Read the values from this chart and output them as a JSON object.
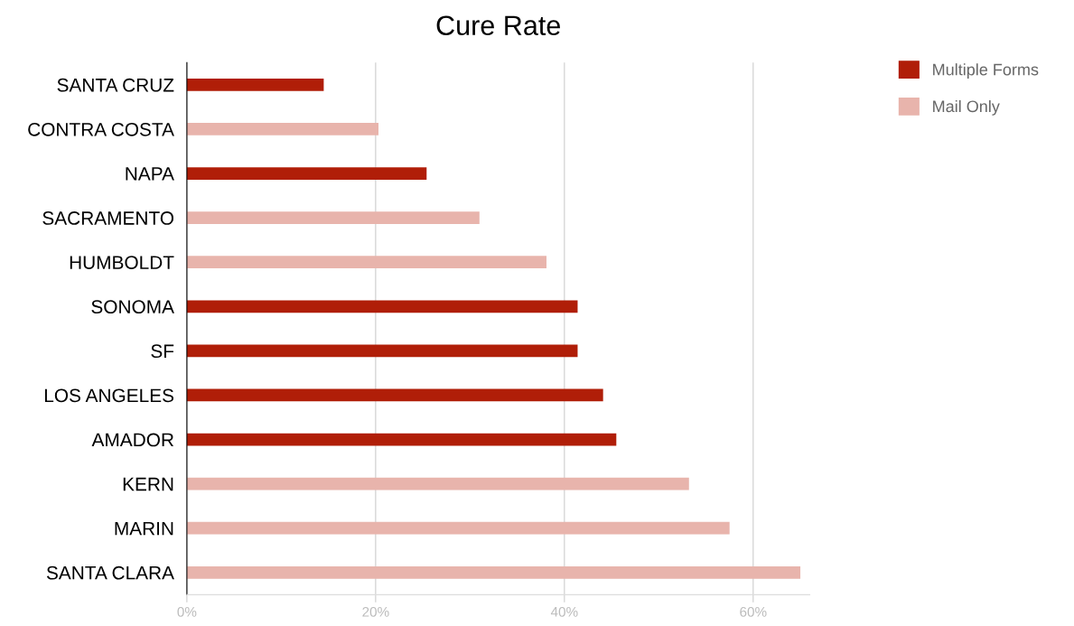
{
  "chart_data": {
    "type": "bar",
    "orientation": "horizontal",
    "title": "Cure Rate",
    "categories": [
      "SANTA CRUZ",
      "CONTRA COSTA",
      "NAPA",
      "SACRAMENTO",
      "HUMBOLDT",
      "SONOMA",
      "SF",
      "LOS ANGELES",
      "AMADOR",
      "KERN",
      "MARIN",
      "SANTA CLARA"
    ],
    "series": [
      {
        "name": "Multiple Forms",
        "color": "#b01e08",
        "values": [
          14.5,
          null,
          25.4,
          null,
          null,
          41.4,
          41.4,
          44.1,
          45.5,
          null,
          null,
          null
        ]
      },
      {
        "name": "Mail Only",
        "color": "#e8b4ac",
        "values": [
          null,
          20.3,
          null,
          31,
          38.1,
          null,
          null,
          null,
          null,
          53.2,
          57.5,
          65
        ]
      }
    ],
    "xlim": [
      0,
      66
    ],
    "xticks": [
      {
        "value": 0,
        "label": "0%"
      },
      {
        "value": 20,
        "label": "20%"
      },
      {
        "value": 40,
        "label": "40%"
      },
      {
        "value": 60,
        "label": "60%"
      }
    ],
    "grid": "x",
    "legend": "top right"
  }
}
